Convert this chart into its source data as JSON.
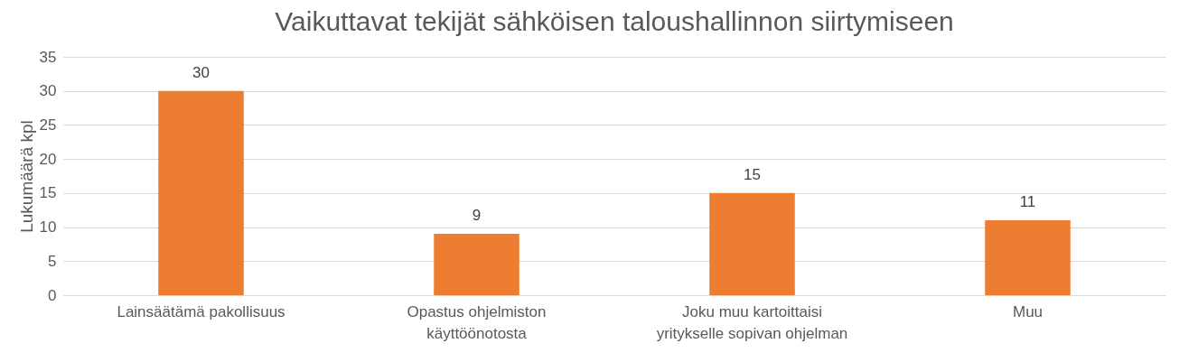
{
  "chart_data": {
    "type": "bar",
    "title": "Vaikuttavat tekijät sähköisen taloushallinnon siirtymiseen",
    "ylabel": "Lukumäärä kpl",
    "categories": [
      "Lainsäätämä pakollisuus",
      "Opastus ohjelmiston käyttöönotosta",
      "Joku muu kartoittaisi yritykselle sopivan ohjelman",
      "Muu"
    ],
    "values": [
      30,
      9,
      15,
      11
    ],
    "color": "#ed7d31",
    "ylim": [
      0,
      35
    ],
    "yticks": [
      0,
      5,
      10,
      15,
      20,
      25,
      30,
      35
    ],
    "grid": "y",
    "data_labels": true
  }
}
